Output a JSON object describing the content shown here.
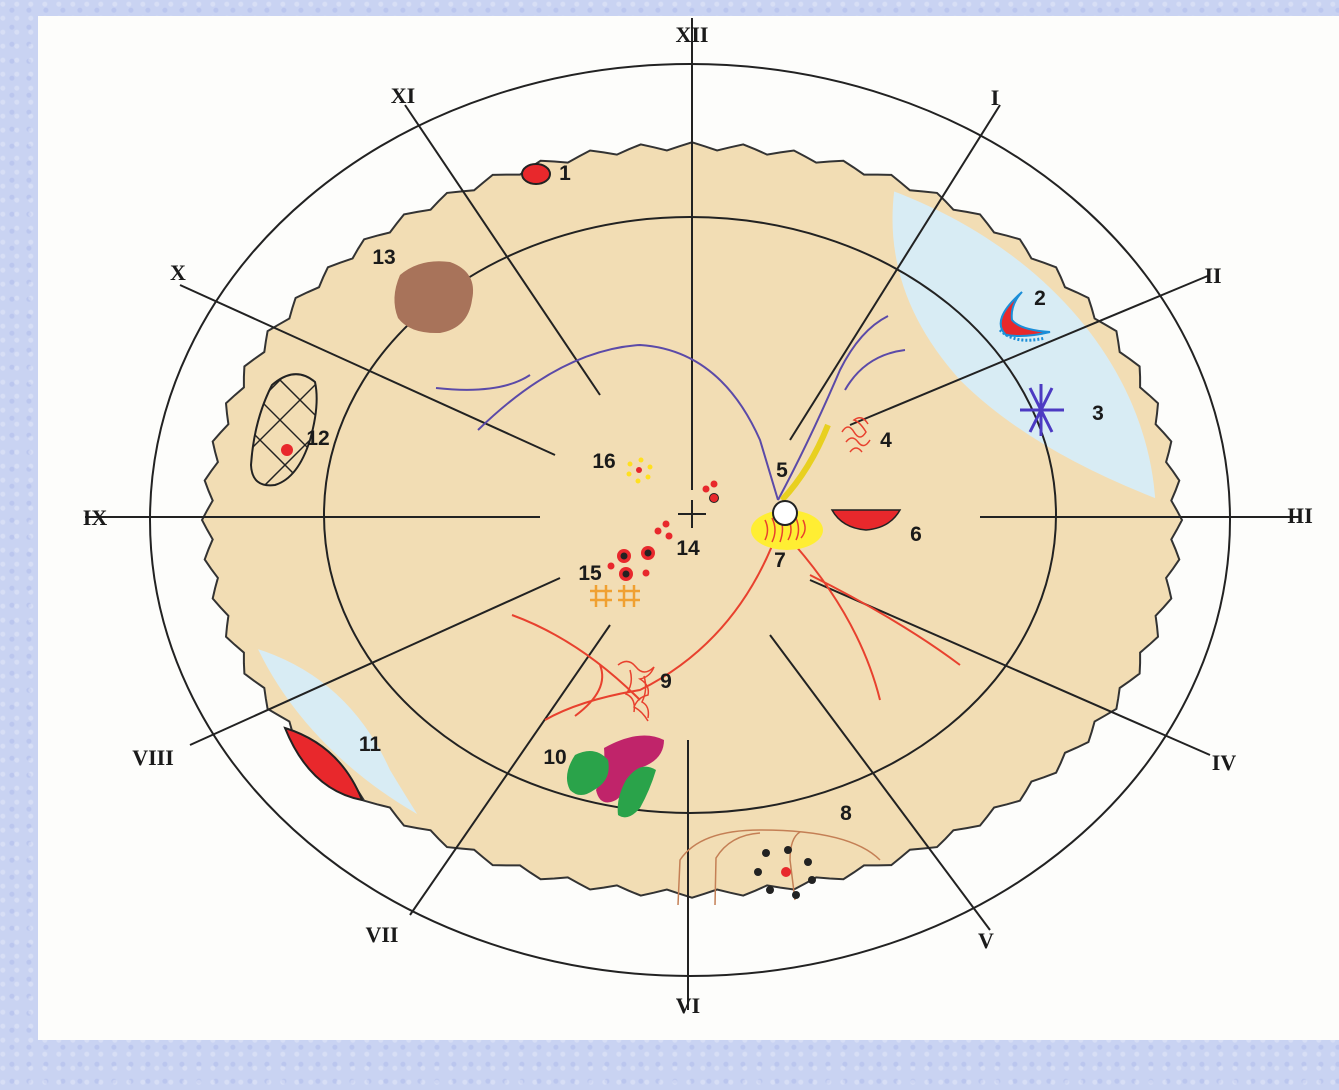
{
  "diagram": {
    "clock_labels": [
      "XII",
      "I",
      "II",
      "III",
      "IV",
      "V",
      "VI",
      "VII",
      "VIII",
      "IX",
      "X",
      "XI"
    ],
    "lesion_labels": [
      "1",
      "2",
      "3",
      "4",
      "5",
      "6",
      "7",
      "8",
      "9",
      "10",
      "11",
      "12",
      "13",
      "14",
      "15",
      "16"
    ]
  },
  "colors": {
    "fundus": "#f2ddb4",
    "detached_retina": "#d8ecf4",
    "artery": "#e8412e",
    "vein": "#5b4aa8",
    "hemorrhage": "#e8282c",
    "optic_disc_glow": "#ffee33",
    "pigment": "#a8735a",
    "exudate": "#f0a030",
    "neovascular": "#2aa34a",
    "purple_lesion": "#c0246a"
  }
}
